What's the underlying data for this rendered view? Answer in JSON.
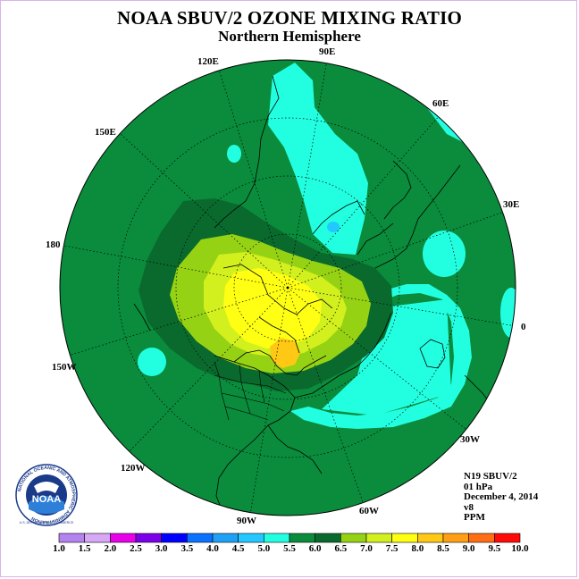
{
  "header": {
    "title": "NOAA SBUV/2 OZONE MIXING RATIO",
    "subtitle": "Northern Hemisphere"
  },
  "meridian_labels": [
    {
      "text": "90E"
    },
    {
      "text": "60E"
    },
    {
      "text": "120E"
    },
    {
      "text": "150E"
    },
    {
      "text": "30E"
    },
    {
      "text": "180"
    },
    {
      "text": "0"
    },
    {
      "text": "150W"
    },
    {
      "text": "30W"
    },
    {
      "text": "120W"
    },
    {
      "text": "60W"
    },
    {
      "text": "90W"
    }
  ],
  "info": {
    "satellite": "N19 SBUV/2",
    "level": "01 hPa",
    "date": "December 4, 2014",
    "version": "v8",
    "units": "PPM"
  },
  "logo": {
    "text": "NOAA",
    "ring_text": "NATIONAL OCEANIC AND ATMOSPHERIC ADMINISTRATION",
    "ring_bottom": "U.S. DEPARTMENT OF COMMERCE"
  },
  "colorbar": {
    "ticks": [
      "1.0",
      "1.5",
      "2.0",
      "2.5",
      "3.0",
      "3.5",
      "4.0",
      "4.5",
      "5.0",
      "5.5",
      "6.0",
      "6.5",
      "7.0",
      "7.5",
      "8.0",
      "8.5",
      "9.0",
      "9.5",
      "10.0"
    ],
    "colors": [
      "#b383f0",
      "#d7a8f5",
      "#e800e8",
      "#7c00e8",
      "#0000ff",
      "#0a72ff",
      "#1ea0f5",
      "#22c8ff",
      "#22ffe0",
      "#0a8c3c",
      "#0a6a2e",
      "#96d214",
      "#d2f01e",
      "#ffff14",
      "#ffc814",
      "#ffa014",
      "#ff6e14",
      "#ff0a0a",
      "#8a5a36"
    ]
  },
  "map_colors": {
    "c45": "#22ffe0",
    "c50": "#0a8c3c",
    "c55": "#0a6a2e",
    "c60": "#96d214",
    "c65": "#d2f01e",
    "c70": "#ffff14",
    "c75": "#ffc814",
    "c80": "#ffa014"
  }
}
